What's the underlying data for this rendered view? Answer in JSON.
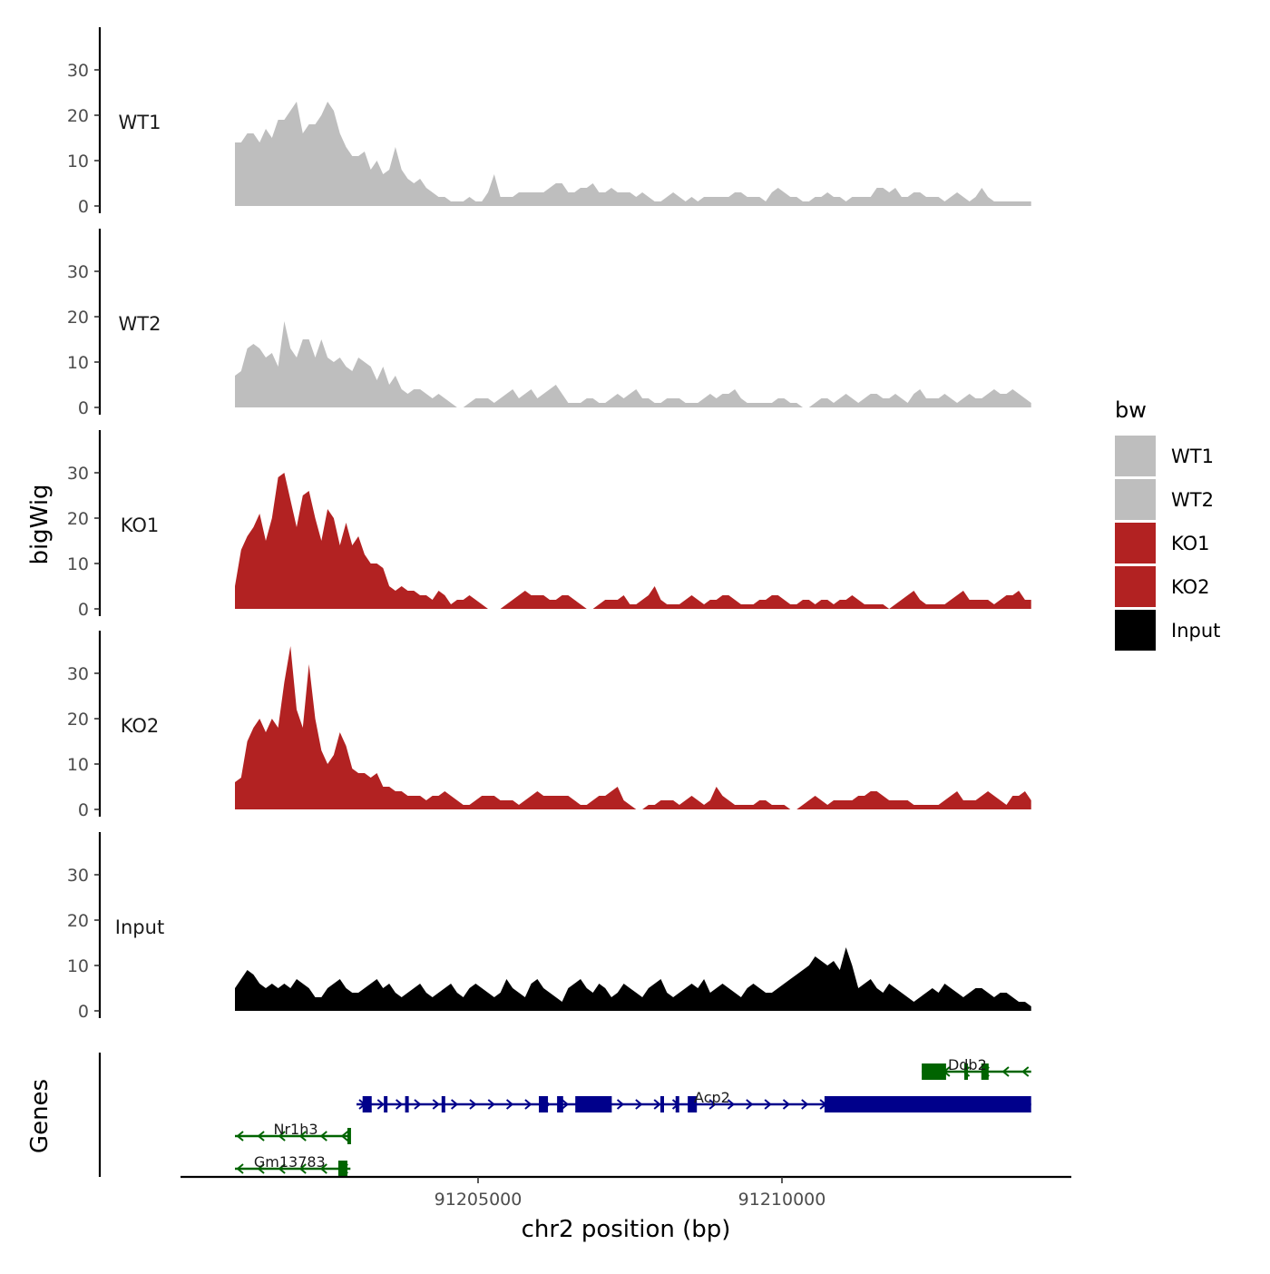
{
  "chart_data": {
    "type": "area",
    "title": "",
    "ylabel": "bigWig",
    "xlabel": "chr2 position (bp)",
    "genes_label": "Genes",
    "x_range": [
      91201000,
      91214100
    ],
    "x_ticks": [
      91205000,
      91210000
    ],
    "x_tick_labels": [
      "91205000",
      "91210000"
    ],
    "ylim": [
      0,
      40
    ],
    "y_ticks": [
      0,
      10,
      20,
      30
    ],
    "y_tick_labels": [
      "0",
      "10",
      "20",
      "30"
    ],
    "legend": {
      "title": "bw",
      "position": "right",
      "entries": [
        {
          "label": "WT1",
          "color": "#bebebe"
        },
        {
          "label": "WT2",
          "color": "#bebebe"
        },
        {
          "label": "KO1",
          "color": "#b22222"
        },
        {
          "label": "KO2",
          "color": "#b22222"
        },
        {
          "label": "Input",
          "color": "#000000"
        }
      ]
    },
    "tracks": [
      {
        "name": "WT1",
        "color": "#bebebe",
        "values": [
          14,
          14,
          16,
          16,
          14,
          17,
          15,
          19,
          19,
          21,
          23,
          16,
          18,
          18,
          20,
          23,
          21,
          16,
          13,
          11,
          11,
          12,
          8,
          10,
          7,
          8,
          13,
          8,
          6,
          5,
          6,
          4,
          3,
          2,
          2,
          1,
          1,
          1,
          2,
          1,
          1,
          3,
          7,
          2,
          2,
          2,
          3,
          3,
          3,
          3,
          3,
          4,
          5,
          5,
          3,
          3,
          4,
          4,
          5,
          3,
          3,
          4,
          3,
          3,
          3,
          2,
          3,
          2,
          1,
          1,
          2,
          3,
          2,
          1,
          2,
          1,
          2,
          2,
          2,
          2,
          2,
          3,
          3,
          2,
          2,
          2,
          1,
          3,
          4,
          3,
          2,
          2,
          1,
          1,
          2,
          2,
          3,
          2,
          2,
          1,
          2,
          2,
          2,
          2,
          4,
          4,
          3,
          4,
          2,
          2,
          3,
          3,
          2,
          2,
          2,
          1,
          2,
          3,
          2,
          1,
          2,
          4,
          2,
          1,
          1,
          1,
          1,
          1,
          1,
          1
        ]
      },
      {
        "name": "WT2",
        "color": "#bebebe",
        "values": [
          7,
          8,
          13,
          14,
          13,
          11,
          12,
          9,
          19,
          13,
          11,
          15,
          15,
          11,
          15,
          11,
          10,
          11,
          9,
          8,
          11,
          10,
          9,
          6,
          9,
          5,
          7,
          4,
          3,
          4,
          4,
          3,
          2,
          3,
          2,
          1,
          0,
          0,
          1,
          2,
          2,
          2,
          1,
          2,
          3,
          4,
          2,
          3,
          4,
          2,
          3,
          4,
          5,
          3,
          1,
          1,
          1,
          2,
          2,
          1,
          1,
          2,
          3,
          2,
          3,
          4,
          2,
          2,
          1,
          1,
          2,
          2,
          2,
          1,
          1,
          1,
          2,
          3,
          2,
          3,
          3,
          4,
          2,
          1,
          1,
          1,
          1,
          1,
          2,
          2,
          1,
          1,
          0,
          0,
          1,
          2,
          2,
          1,
          2,
          3,
          2,
          1,
          2,
          3,
          3,
          2,
          2,
          3,
          2,
          1,
          3,
          4,
          2,
          2,
          2,
          3,
          2,
          1,
          2,
          3,
          2,
          2,
          3,
          4,
          3,
          3,
          4,
          3,
          2,
          1
        ]
      },
      {
        "name": "KO1",
        "color": "#b22222",
        "values": [
          5,
          13,
          16,
          18,
          21,
          15,
          20,
          29,
          30,
          24,
          18,
          25,
          26,
          20,
          15,
          22,
          20,
          14,
          19,
          14,
          16,
          12,
          10,
          10,
          9,
          5,
          4,
          5,
          4,
          4,
          3,
          3,
          2,
          4,
          3,
          1,
          2,
          2,
          3,
          2,
          1,
          0,
          0,
          0,
          1,
          2,
          3,
          4,
          3,
          3,
          3,
          2,
          2,
          3,
          3,
          2,
          1,
          0,
          0,
          1,
          2,
          2,
          2,
          3,
          1,
          1,
          2,
          3,
          5,
          2,
          1,
          1,
          1,
          2,
          3,
          2,
          1,
          2,
          2,
          3,
          3,
          2,
          1,
          1,
          1,
          2,
          2,
          3,
          3,
          2,
          1,
          1,
          2,
          2,
          1,
          2,
          2,
          1,
          2,
          2,
          3,
          2,
          1,
          1,
          1,
          1,
          0,
          1,
          2,
          3,
          4,
          2,
          1,
          1,
          1,
          1,
          2,
          3,
          4,
          2,
          2,
          2,
          2,
          1,
          2,
          3,
          3,
          4,
          2,
          2
        ]
      },
      {
        "name": "KO2",
        "color": "#b22222",
        "values": [
          6,
          7,
          15,
          18,
          20,
          17,
          20,
          18,
          28,
          36,
          22,
          18,
          32,
          20,
          13,
          10,
          12,
          17,
          14,
          9,
          8,
          8,
          7,
          8,
          5,
          5,
          4,
          4,
          3,
          3,
          3,
          2,
          3,
          3,
          4,
          3,
          2,
          1,
          1,
          2,
          3,
          3,
          3,
          2,
          2,
          2,
          1,
          2,
          3,
          4,
          3,
          3,
          3,
          3,
          3,
          2,
          1,
          1,
          2,
          3,
          3,
          4,
          5,
          2,
          1,
          0,
          0,
          1,
          1,
          2,
          2,
          2,
          1,
          2,
          3,
          2,
          1,
          2,
          5,
          3,
          2,
          1,
          1,
          1,
          1,
          2,
          2,
          1,
          1,
          1,
          0,
          0,
          1,
          2,
          3,
          2,
          1,
          2,
          2,
          2,
          2,
          3,
          3,
          4,
          4,
          3,
          2,
          2,
          2,
          2,
          1,
          1,
          1,
          1,
          1,
          2,
          3,
          4,
          2,
          2,
          2,
          3,
          4,
          3,
          2,
          1,
          3,
          3,
          4,
          2
        ]
      },
      {
        "name": "Input",
        "color": "#000000",
        "values": [
          5,
          7,
          9,
          8,
          6,
          5,
          6,
          5,
          6,
          5,
          7,
          6,
          5,
          3,
          3,
          5,
          6,
          7,
          5,
          4,
          4,
          5,
          6,
          7,
          5,
          6,
          4,
          3,
          4,
          5,
          6,
          4,
          3,
          4,
          5,
          6,
          4,
          3,
          5,
          6,
          5,
          4,
          3,
          4,
          7,
          5,
          4,
          3,
          6,
          7,
          5,
          4,
          3,
          2,
          5,
          6,
          7,
          5,
          4,
          6,
          5,
          3,
          4,
          6,
          5,
          4,
          3,
          5,
          6,
          7,
          4,
          3,
          4,
          5,
          6,
          5,
          7,
          4,
          5,
          6,
          5,
          4,
          3,
          5,
          6,
          5,
          4,
          4,
          5,
          6,
          7,
          8,
          9,
          10,
          12,
          11,
          10,
          11,
          9,
          14,
          10,
          5,
          6,
          7,
          5,
          4,
          6,
          5,
          4,
          3,
          2,
          3,
          4,
          5,
          4,
          6,
          5,
          4,
          3,
          4,
          5,
          5,
          4,
          3,
          4,
          4,
          3,
          2,
          2,
          1
        ]
      }
    ],
    "genes": [
      {
        "name": "Ddb2",
        "strand": "-",
        "color": "#006400",
        "start": 91212300,
        "end": 91214100,
        "exons": [
          [
            91212300,
            91212700
          ],
          [
            91213000,
            91213050
          ],
          [
            91213280,
            91213400
          ]
        ]
      },
      {
        "name": "Acp2",
        "strand": "+",
        "color": "#00008b",
        "start": 91203000,
        "end": 91214100,
        "exons": [
          [
            91203100,
            91203250
          ],
          [
            91203450,
            91203500
          ],
          [
            91203800,
            91203850
          ],
          [
            91204400,
            91204450
          ],
          [
            91206000,
            91206150
          ],
          [
            91206300,
            91206400
          ],
          [
            91206600,
            91207200
          ],
          [
            91208000,
            91208050
          ],
          [
            91208250,
            91208300
          ],
          [
            91208450,
            91208600
          ],
          [
            91210700,
            91214100
          ]
        ]
      },
      {
        "name": "Nr1h3",
        "strand": "-",
        "color": "#006400",
        "start": 91201000,
        "end": 91202900,
        "exons": [
          [
            91202850,
            91202900
          ]
        ]
      },
      {
        "name": "Gm13783",
        "strand": "-",
        "color": "#006400",
        "start": 91201000,
        "end": 91202900,
        "exons": [
          [
            91202700,
            91202850
          ]
        ]
      }
    ]
  }
}
